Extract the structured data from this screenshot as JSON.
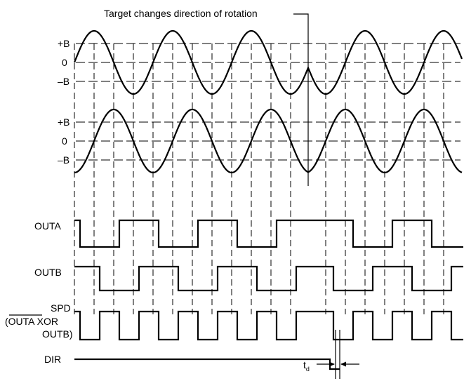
{
  "annotation": "Target changes direction of rotation",
  "sensor_a": {
    "levels": [
      "+B",
      "0",
      "–B"
    ]
  },
  "sensor_b": {
    "levels": [
      "+B",
      "0",
      "–B"
    ]
  },
  "outputs": {
    "outa": "OUTA",
    "outb": "OUTB",
    "spd": {
      "line1": "SPD",
      "line2_pre": "(",
      "line2_bar": "OUTA",
      "line2_post": " XOR",
      "line3": "OUTB)"
    },
    "dir": "DIR"
  },
  "delay_label": {
    "main": "t",
    "sub": "d"
  }
}
